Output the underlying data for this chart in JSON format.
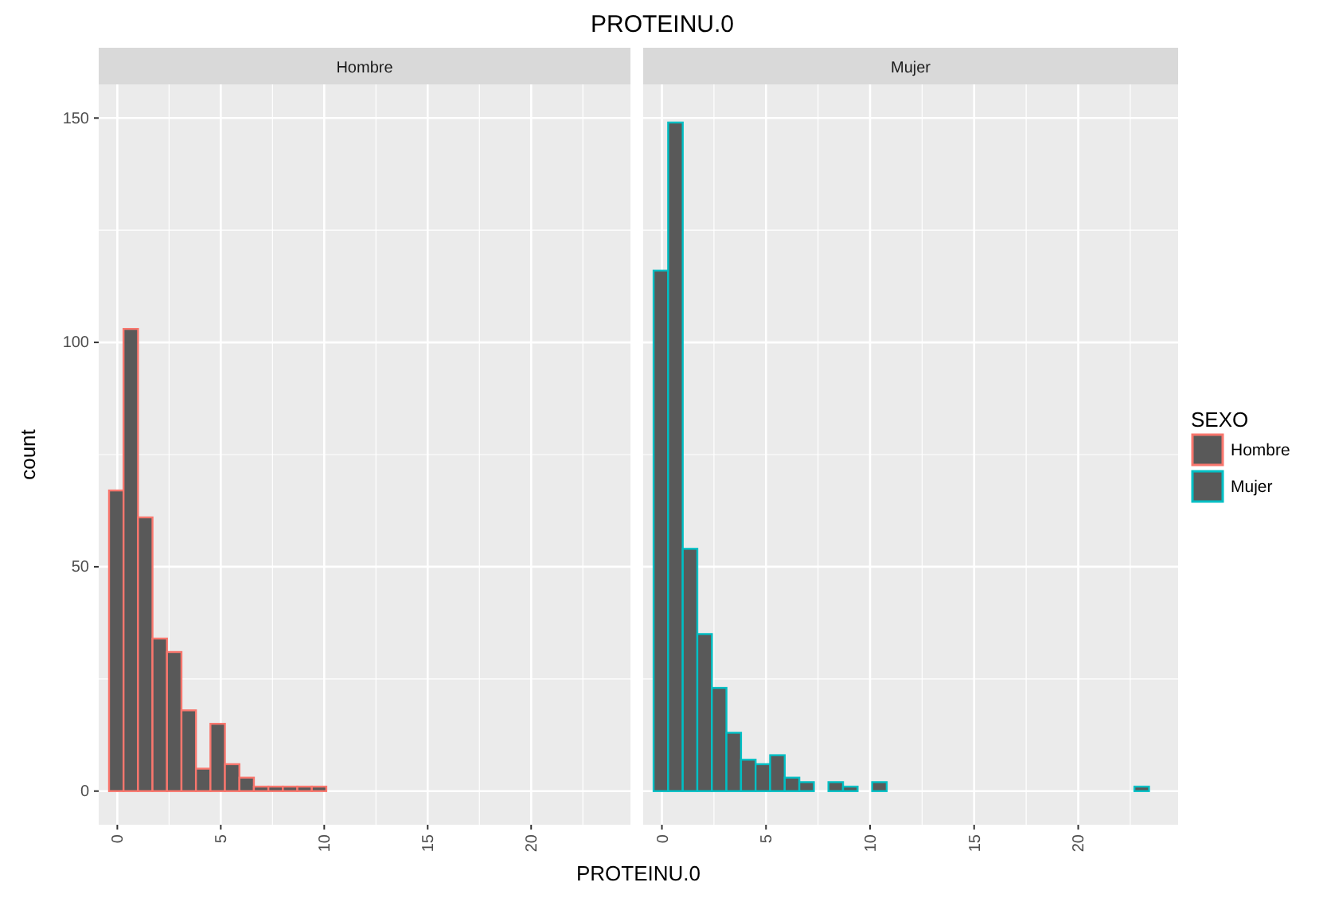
{
  "chart_data": [
    {
      "type": "histogram",
      "title": "PROTEINU.0",
      "subtitle": "Hombre",
      "xlabel": "PROTEINU.0",
      "ylabel": "count",
      "legend_title": "SEXO",
      "legend": "right",
      "grid": true,
      "bins": [
        -0.4,
        0.3,
        1.0,
        1.7,
        2.4,
        3.1,
        3.8,
        4.5,
        5.2,
        5.9,
        6.6,
        7.3,
        8.0,
        8.7,
        9.4,
        10.1,
        10.8,
        11.5,
        12.2,
        12.9,
        13.6,
        14.3,
        15.0,
        15.7,
        16.4,
        17.1,
        17.8,
        18.5,
        19.2,
        19.9,
        20.6,
        21.3,
        22.0,
        22.7,
        23.4
      ],
      "series": [
        {
          "name": "Hombre",
          "color": "#f8766d",
          "values": [
            67,
            103,
            61,
            34,
            31,
            18,
            5,
            15,
            6,
            3,
            1,
            1,
            1,
            1,
            1,
            0,
            0,
            0,
            0,
            0,
            0,
            0,
            0,
            0,
            0,
            0,
            0,
            0,
            0,
            0,
            0,
            0,
            0,
            0
          ]
        }
      ],
      "xlim": [
        -0.9,
        24.8
      ],
      "xticks": [
        0,
        5,
        10,
        15,
        20
      ],
      "ylim": [
        -7.5,
        157.5
      ],
      "yticks": [
        0,
        50,
        100,
        150
      ]
    },
    {
      "type": "histogram",
      "subtitle": "Mujer",
      "legend": "right",
      "grid": true,
      "tick_labels": "x",
      "bins": [
        -0.4,
        0.3,
        1.0,
        1.7,
        2.4,
        3.1,
        3.8,
        4.5,
        5.2,
        5.9,
        6.6,
        7.3,
        8.0,
        8.7,
        9.4,
        10.1,
        10.8,
        11.5,
        12.2,
        12.9,
        13.6,
        14.3,
        15.0,
        15.7,
        16.4,
        17.1,
        17.8,
        18.5,
        19.2,
        19.9,
        20.6,
        21.3,
        22.0,
        22.7,
        23.4
      ],
      "series": [
        {
          "name": "Mujer",
          "color": "#00bfc4",
          "values": [
            116,
            149,
            54,
            35,
            23,
            13,
            7,
            6,
            8,
            3,
            2,
            0,
            2,
            1,
            0,
            2,
            0,
            0,
            0,
            0,
            0,
            0,
            0,
            0,
            0,
            0,
            0,
            0,
            0,
            0,
            0,
            0,
            0,
            1
          ]
        }
      ],
      "xlim": [
        -0.9,
        24.8
      ],
      "xticks": [
        0,
        5,
        10,
        15,
        20
      ],
      "ylim": [
        -7.5,
        157.5
      ],
      "yticks": [
        0,
        50,
        100,
        150
      ]
    }
  ]
}
